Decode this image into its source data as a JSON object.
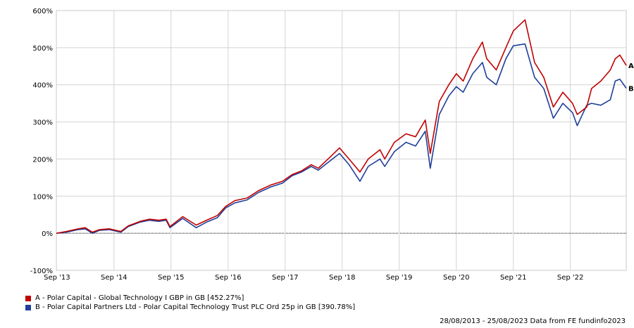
{
  "chart_data": {
    "type": "line",
    "yunit": "%",
    "ylim": [
      -100,
      600
    ],
    "yticks": [
      "600%",
      "500%",
      "400%",
      "300%",
      "200%",
      "100%",
      "0%",
      "-100%"
    ],
    "ytick_values": [
      600,
      500,
      400,
      300,
      200,
      100,
      0,
      -100
    ],
    "xlim": [
      "2013-08-28",
      "2023-08-25"
    ],
    "xticks": [
      "Sep '13",
      "Sep '14",
      "Sep '15",
      "Sep '16",
      "Sep '17",
      "Sep '18",
      "Sep '19",
      "Sep '20",
      "Sep '21",
      "Sep '22"
    ],
    "xtick_dates": [
      "2013-09-01",
      "2014-09-01",
      "2015-09-01",
      "2016-09-01",
      "2017-09-01",
      "2018-09-01",
      "2019-09-01",
      "2020-09-01",
      "2021-09-01",
      "2022-09-01"
    ],
    "grid": true,
    "legend_position": "bottom-left",
    "series": [
      {
        "name": "A - Polar Capital - Global Technology I GBP in GB [452.27%]",
        "end_label": "A",
        "color": "#c00000",
        "points": [
          [
            "2013-08-28",
            0
          ],
          [
            "2013-11-01",
            5
          ],
          [
            "2014-01-15",
            12
          ],
          [
            "2014-03-01",
            15
          ],
          [
            "2014-04-15",
            3
          ],
          [
            "2014-06-01",
            10
          ],
          [
            "2014-08-01",
            12
          ],
          [
            "2014-10-15",
            5
          ],
          [
            "2014-12-01",
            20
          ],
          [
            "2015-02-15",
            32
          ],
          [
            "2015-04-15",
            38
          ],
          [
            "2015-06-15",
            35
          ],
          [
            "2015-08-01",
            38
          ],
          [
            "2015-08-25",
            18
          ],
          [
            "2015-11-15",
            45
          ],
          [
            "2016-02-10",
            22
          ],
          [
            "2016-04-15",
            35
          ],
          [
            "2016-06-24",
            48
          ],
          [
            "2016-08-15",
            72
          ],
          [
            "2016-10-15",
            88
          ],
          [
            "2017-01-01",
            95
          ],
          [
            "2017-03-15",
            115
          ],
          [
            "2017-06-01",
            130
          ],
          [
            "2017-08-15",
            140
          ],
          [
            "2017-10-15",
            158
          ],
          [
            "2017-12-15",
            168
          ],
          [
            "2018-02-15",
            185
          ],
          [
            "2018-04-01",
            175
          ],
          [
            "2018-06-15",
            205
          ],
          [
            "2018-08-15",
            230
          ],
          [
            "2018-10-15",
            200
          ],
          [
            "2018-12-24",
            165
          ],
          [
            "2019-02-15",
            200
          ],
          [
            "2019-05-01",
            225
          ],
          [
            "2019-06-01",
            200
          ],
          [
            "2019-08-01",
            245
          ],
          [
            "2019-10-15",
            268
          ],
          [
            "2019-12-15",
            260
          ],
          [
            "2020-02-15",
            305
          ],
          [
            "2020-03-18",
            215
          ],
          [
            "2020-05-15",
            355
          ],
          [
            "2020-07-15",
            400
          ],
          [
            "2020-09-01",
            430
          ],
          [
            "2020-10-15",
            410
          ],
          [
            "2020-12-15",
            470
          ],
          [
            "2021-02-15",
            515
          ],
          [
            "2021-03-15",
            470
          ],
          [
            "2021-05-15",
            440
          ],
          [
            "2021-07-15",
            500
          ],
          [
            "2021-09-01",
            545
          ],
          [
            "2021-11-15",
            575
          ],
          [
            "2022-01-15",
            460
          ],
          [
            "2022-03-15",
            420
          ],
          [
            "2022-05-15",
            340
          ],
          [
            "2022-07-15",
            380
          ],
          [
            "2022-09-15",
            350
          ],
          [
            "2022-10-15",
            320
          ],
          [
            "2022-12-15",
            340
          ],
          [
            "2023-01-15",
            390
          ],
          [
            "2023-03-15",
            410
          ],
          [
            "2023-05-15",
            440
          ],
          [
            "2023-06-15",
            470
          ],
          [
            "2023-07-15",
            480
          ],
          [
            "2023-08-25",
            452.27
          ]
        ]
      },
      {
        "name": "B - Polar Capital Partners Ltd - Polar Capital Technology Trust PLC Ord 25p in GB [390.78%]",
        "end_label": "B",
        "color": "#1f3f99",
        "points": [
          [
            "2013-08-28",
            0
          ],
          [
            "2013-11-01",
            3
          ],
          [
            "2014-01-15",
            10
          ],
          [
            "2014-03-01",
            12
          ],
          [
            "2014-04-15",
            0
          ],
          [
            "2014-06-01",
            8
          ],
          [
            "2014-08-01",
            10
          ],
          [
            "2014-10-15",
            3
          ],
          [
            "2014-12-01",
            18
          ],
          [
            "2015-02-15",
            30
          ],
          [
            "2015-04-15",
            35
          ],
          [
            "2015-06-15",
            32
          ],
          [
            "2015-08-01",
            35
          ],
          [
            "2015-08-25",
            15
          ],
          [
            "2015-11-15",
            40
          ],
          [
            "2016-02-10",
            15
          ],
          [
            "2016-04-15",
            30
          ],
          [
            "2016-06-24",
            42
          ],
          [
            "2016-08-15",
            68
          ],
          [
            "2016-10-15",
            82
          ],
          [
            "2017-01-01",
            90
          ],
          [
            "2017-03-15",
            110
          ],
          [
            "2017-06-01",
            125
          ],
          [
            "2017-08-15",
            135
          ],
          [
            "2017-10-15",
            155
          ],
          [
            "2017-12-15",
            165
          ],
          [
            "2018-02-15",
            180
          ],
          [
            "2018-04-01",
            170
          ],
          [
            "2018-06-15",
            195
          ],
          [
            "2018-08-15",
            215
          ],
          [
            "2018-10-15",
            185
          ],
          [
            "2018-12-24",
            140
          ],
          [
            "2019-02-15",
            180
          ],
          [
            "2019-05-01",
            200
          ],
          [
            "2019-06-01",
            180
          ],
          [
            "2019-08-01",
            220
          ],
          [
            "2019-10-15",
            245
          ],
          [
            "2019-12-15",
            235
          ],
          [
            "2020-02-15",
            275
          ],
          [
            "2020-03-18",
            175
          ],
          [
            "2020-05-15",
            320
          ],
          [
            "2020-07-15",
            370
          ],
          [
            "2020-09-01",
            395
          ],
          [
            "2020-10-15",
            380
          ],
          [
            "2020-12-15",
            430
          ],
          [
            "2021-02-15",
            460
          ],
          [
            "2021-03-15",
            420
          ],
          [
            "2021-05-15",
            400
          ],
          [
            "2021-07-15",
            470
          ],
          [
            "2021-09-01",
            505
          ],
          [
            "2021-11-15",
            510
          ],
          [
            "2022-01-15",
            420
          ],
          [
            "2022-03-15",
            390
          ],
          [
            "2022-05-15",
            310
          ],
          [
            "2022-07-15",
            350
          ],
          [
            "2022-09-15",
            325
          ],
          [
            "2022-10-15",
            290
          ],
          [
            "2022-12-15",
            345
          ],
          [
            "2023-01-15",
            350
          ],
          [
            "2023-03-15",
            345
          ],
          [
            "2023-05-15",
            360
          ],
          [
            "2023-06-15",
            410
          ],
          [
            "2023-07-15",
            415
          ],
          [
            "2023-08-25",
            390.78
          ]
        ]
      }
    ]
  },
  "footer": {
    "text": "28/08/2013 - 25/08/2023 Data from FE fundinfo2023"
  }
}
